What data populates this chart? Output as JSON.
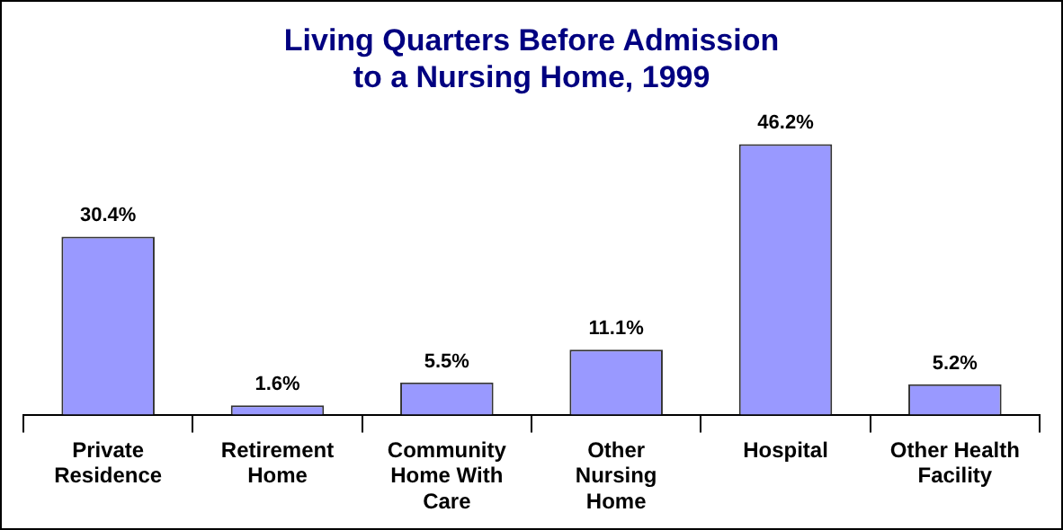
{
  "chart_data": {
    "type": "bar",
    "title": "Living Quarters Before Admission\nto a Nursing Home, 1999",
    "categories": [
      "Private\nResidence",
      "Retirement\nHome",
      "Community\nHome With\nCare",
      "Other\nNursing\nHome",
      "Hospital",
      "Other Health\nFacility"
    ],
    "values": [
      30.4,
      1.6,
      5.5,
      11.1,
      46.2,
      5.2
    ],
    "value_labels": [
      "30.4%",
      "1.6%",
      "5.5%",
      "11.1%",
      "46.2%",
      "5.2%"
    ],
    "color": "#9999ff",
    "grid": false,
    "legend": false
  }
}
